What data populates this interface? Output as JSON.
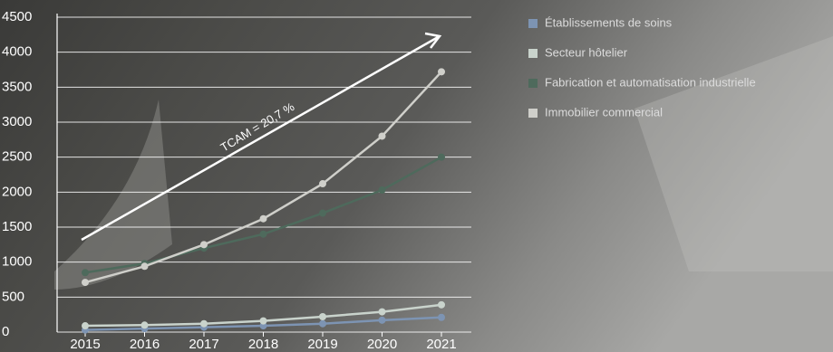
{
  "chart_data": {
    "type": "line",
    "x": [
      2015,
      2016,
      2017,
      2018,
      2019,
      2020,
      2021
    ],
    "xlim": [
      2015,
      2021
    ],
    "xticks": [
      2015,
      2016,
      2017,
      2018,
      2019,
      2020,
      2021
    ],
    "ylim": [
      0,
      4500
    ],
    "yticks": [
      0,
      500,
      1000,
      1500,
      2000,
      2500,
      3000,
      3500,
      4000,
      4500
    ],
    "grid": true,
    "legend": "right",
    "annotation": "TCAM = 20,7 %",
    "series": [
      {
        "name": "Établissements de soins",
        "color": "#7d94b3",
        "values": [
          30,
          50,
          70,
          90,
          120,
          170,
          210
        ]
      },
      {
        "name": "Secteur hôtelier",
        "color": "#c9d3cc",
        "values": [
          90,
          100,
          120,
          160,
          220,
          290,
          390
        ]
      },
      {
        "name": "Fabrication et automatisation industrielle",
        "color": "#4e6a5c",
        "values": [
          850,
          980,
          1200,
          1400,
          1700,
          2030,
          2500
        ]
      },
      {
        "name": "Immobilier commercial",
        "color": "#cfcfca",
        "values": [
          710,
          940,
          1250,
          1620,
          2120,
          2800,
          3720
        ]
      }
    ]
  }
}
